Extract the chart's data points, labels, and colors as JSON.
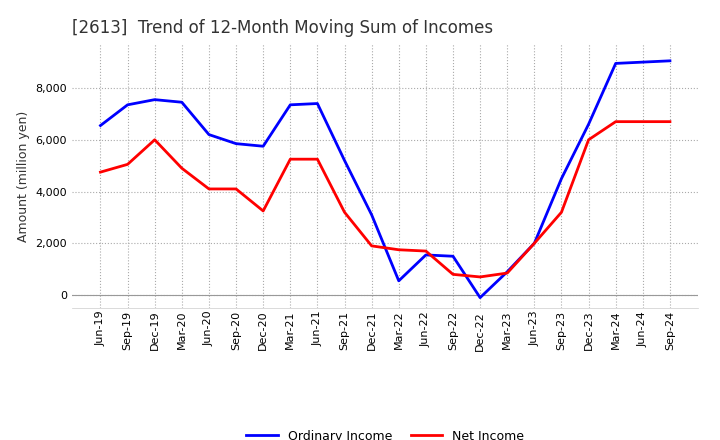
{
  "title": "[2613]  Trend of 12-Month Moving Sum of Incomes",
  "ylabel": "Amount (million yen)",
  "background_color": "#ffffff",
  "ylim": [
    -500,
    9700
  ],
  "yticks": [
    0,
    2000,
    4000,
    6000,
    8000
  ],
  "labels": [
    "Jun-19",
    "Sep-19",
    "Dec-19",
    "Mar-20",
    "Jun-20",
    "Sep-20",
    "Dec-20",
    "Mar-21",
    "Jun-21",
    "Sep-21",
    "Dec-21",
    "Mar-22",
    "Jun-22",
    "Sep-22",
    "Dec-22",
    "Mar-23",
    "Jun-23",
    "Sep-23",
    "Dec-23",
    "Mar-24",
    "Jun-24",
    "Sep-24"
  ],
  "ordinary_income": [
    6550,
    7350,
    7550,
    7450,
    6200,
    5850,
    5750,
    7350,
    7400,
    5200,
    3100,
    550,
    1550,
    1500,
    -100,
    900,
    2000,
    4500,
    6600,
    8950,
    9000,
    9050
  ],
  "net_income": [
    4750,
    5050,
    6000,
    4900,
    4100,
    4100,
    3250,
    5250,
    5250,
    3200,
    1900,
    1750,
    1700,
    800,
    700,
    850,
    2000,
    3200,
    6000,
    6700,
    6700,
    6700
  ],
  "ordinary_color": "#0000ff",
  "net_color": "#ff0000",
  "line_width": 2.0,
  "title_fontsize": 12,
  "legend_fontsize": 9,
  "tick_fontsize": 8,
  "ylabel_fontsize": 9
}
